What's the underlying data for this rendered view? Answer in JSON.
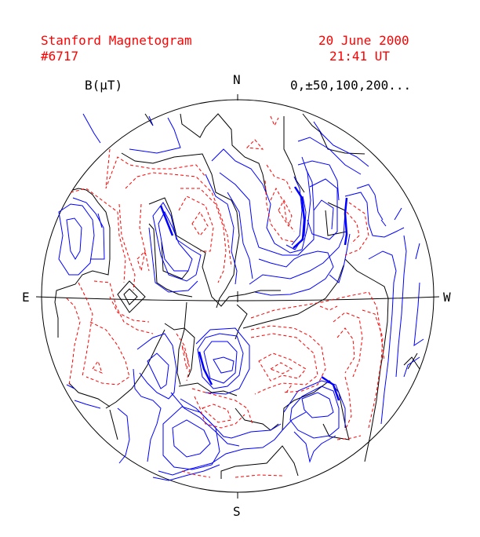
{
  "header": {
    "title_line1": "Stanford Magnetogram",
    "title_line2": "#6717",
    "date": "20 June 2000",
    "time": "21:41 UT"
  },
  "legend": {
    "unit_label": "B(μT)",
    "contour_levels": "0,±50,100,200..."
  },
  "compass": {
    "north": "N",
    "south": "S",
    "east": "E",
    "west": "W"
  },
  "colors": {
    "text": "#ff0000",
    "neutral_line": "#000000",
    "positive_contours": "#0000ff",
    "negative_contours": "#ff0000",
    "disk": "#000000"
  }
}
